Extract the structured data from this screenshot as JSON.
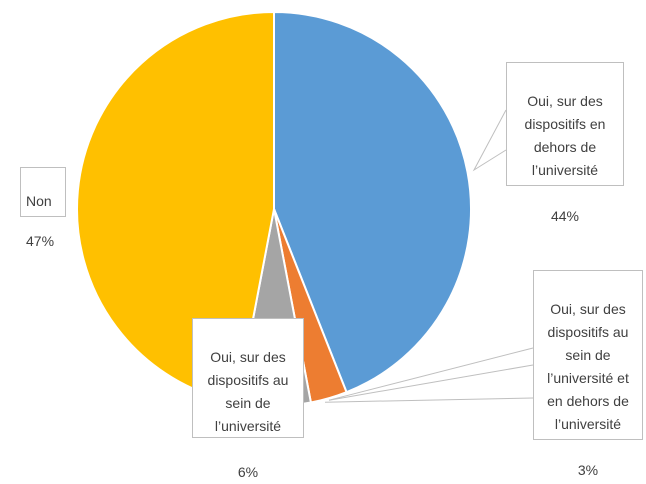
{
  "chart_data": {
    "type": "pie",
    "title": "",
    "start_angle_deg": 0,
    "direction": "clockwise",
    "slices": [
      {
        "label": "Oui, sur des dispositifs en dehors de l’université",
        "value": 44,
        "value_label": "44%",
        "color": "#5b9bd5"
      },
      {
        "label": "Oui, sur des dispositifs au sein de l’université et en dehors de l’université",
        "value": 3,
        "value_label": "3%",
        "color": "#ed7d31"
      },
      {
        "label": "Oui, sur des dispositifs au sein de l’université",
        "value": 6,
        "value_label": "6%",
        "color": "#a5a5a5"
      },
      {
        "label": "Non",
        "value": 47,
        "value_label": "47%",
        "color": "#ffc000"
      }
    ]
  }
}
